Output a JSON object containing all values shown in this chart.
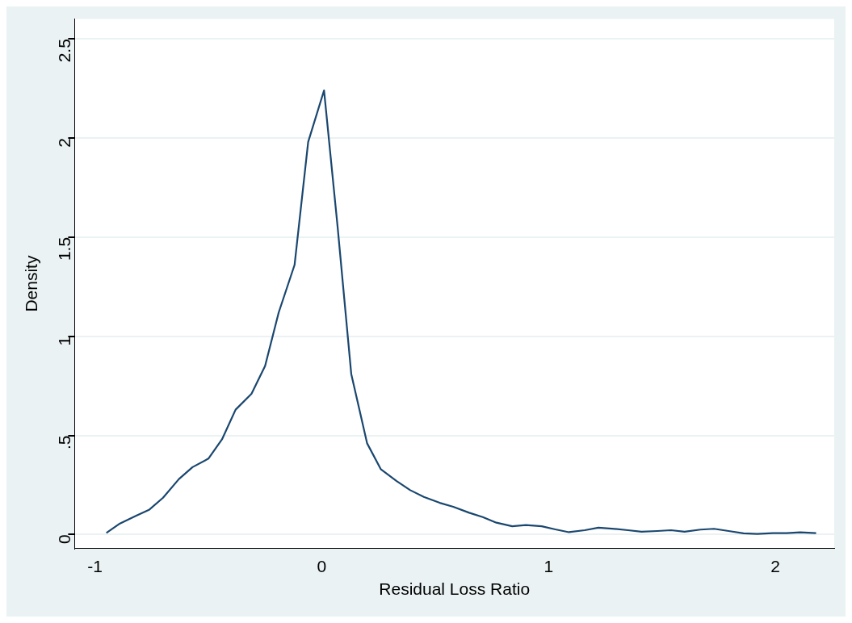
{
  "chart_data": {
    "type": "line",
    "xlabel": "Residual Loss Ratio",
    "ylabel": "Density",
    "x": [
      -0.95,
      -0.89,
      -0.82,
      -0.76,
      -0.7,
      -0.63,
      -0.57,
      -0.5,
      -0.44,
      -0.38,
      -0.31,
      -0.25,
      -0.19,
      -0.12,
      -0.06,
      0.01,
      0.07,
      0.13,
      0.2,
      0.26,
      0.33,
      0.39,
      0.45,
      0.52,
      0.58,
      0.65,
      0.71,
      0.77,
      0.84,
      0.9,
      0.97,
      1.03,
      1.09,
      1.16,
      1.22,
      1.28,
      1.35,
      1.41,
      1.48,
      1.54,
      1.6,
      1.67,
      1.73,
      1.8,
      1.86,
      1.92,
      1.99,
      2.05,
      2.11,
      2.18
    ],
    "series": [
      {
        "color": "#1a476f",
        "values": [
          0.008,
          0.056,
          0.094,
          0.126,
          0.186,
          0.28,
          0.34,
          0.383,
          0.48,
          0.63,
          0.71,
          0.85,
          1.12,
          1.36,
          1.98,
          2.24,
          1.55,
          0.81,
          0.46,
          0.33,
          0.27,
          0.224,
          0.19,
          0.16,
          0.14,
          0.11,
          0.088,
          0.06,
          0.042,
          0.048,
          0.042,
          0.026,
          0.012,
          0.022,
          0.035,
          0.03,
          0.022,
          0.014,
          0.018,
          0.022,
          0.014,
          0.025,
          0.029,
          0.017,
          0.006,
          0.003,
          0.007,
          0.007,
          0.011,
          0.007
        ]
      }
    ],
    "xlim": [
      -1.09,
      2.26
    ],
    "xticks": [
      -1,
      0,
      1,
      2
    ],
    "ylim": [
      -0.07,
      2.6
    ],
    "yticks": [
      0,
      {
        "value": 0.5,
        "label": ".5"
      },
      1,
      1.5,
      2,
      2.5
    ],
    "grid": "y",
    "legend": false,
    "marker": "none",
    "line_style": "solid"
  }
}
